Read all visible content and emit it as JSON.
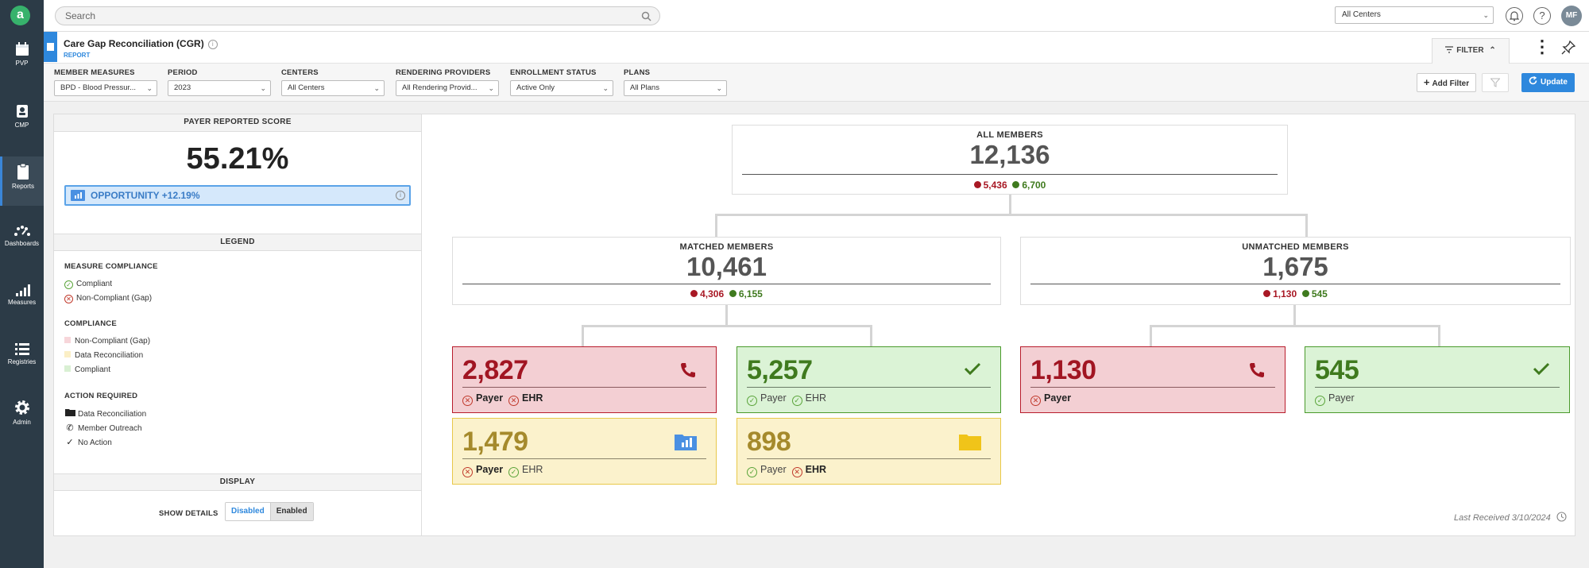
{
  "app": {
    "logo": "a"
  },
  "sidebar": {
    "items": [
      {
        "label": "PVP",
        "icon": "calendar-icon"
      },
      {
        "label": "CMP",
        "icon": "badge-icon"
      },
      {
        "label": "Reports",
        "icon": "clipboard-icon",
        "active": true
      },
      {
        "label": "Dashboards",
        "icon": "gauge-icon"
      },
      {
        "label": "Measures",
        "icon": "signal-bars-icon"
      },
      {
        "label": "Registries",
        "icon": "list-icon"
      },
      {
        "label": "Admin",
        "icon": "gear-icon"
      }
    ]
  },
  "topbar": {
    "search_placeholder": "Search",
    "center_select": "All Centers",
    "user_initials": "MF"
  },
  "report": {
    "title": "Care Gap Reconciliation (CGR)",
    "subtitle": "REPORT",
    "filter_tab": "FILTER"
  },
  "filters": [
    {
      "label": "MEMBER MEASURES",
      "value": "BPD - Blood Pressur..."
    },
    {
      "label": "PERIOD",
      "value": "2023"
    },
    {
      "label": "CENTERS",
      "value": "All Centers"
    },
    {
      "label": "RENDERING PROVIDERS",
      "value": "All Rendering Provid..."
    },
    {
      "label": "ENROLLMENT STATUS",
      "value": "Active Only"
    },
    {
      "label": "PLANS",
      "value": "All Plans"
    }
  ],
  "filter_actions": {
    "add_filter": "Add Filter",
    "update": "Update"
  },
  "left": {
    "payer_header": "PAYER REPORTED SCORE",
    "score": "55.21%",
    "opportunity": "OPPORTUNITY +12.19%",
    "legend_header": "LEGEND",
    "measure_compliance_title": "MEASURE COMPLIANCE",
    "measure_compliance": [
      "Compliant",
      "Non-Compliant (Gap)"
    ],
    "compliance_title": "COMPLIANCE",
    "compliance": [
      "Non-Compliant (Gap)",
      "Data Reconciliation",
      "Compliant"
    ],
    "compliance_colors": [
      "#f7d6da",
      "#fbefc6",
      "#d9f0d3"
    ],
    "action_title": "ACTION REQUIRED",
    "actions": [
      "Data Reconciliation",
      "Member Outreach",
      "No Action"
    ],
    "display_header": "DISPLAY",
    "show_details": "SHOW DETAILS",
    "toggle_off": "Disabled",
    "toggle_on": "Enabled"
  },
  "tree": {
    "all": {
      "title": "ALL MEMBERS",
      "value": "12,136",
      "red": "5,436",
      "green": "6,700"
    },
    "matched": {
      "title": "MATCHED MEMBERS",
      "value": "10,461",
      "red": "4,306",
      "green": "6,155"
    },
    "unmatched": {
      "title": "UNMATCHED MEMBERS",
      "value": "1,675",
      "red": "1,130",
      "green": "545"
    },
    "cards": [
      {
        "value": "2,827",
        "f1": "Payer",
        "f2": "EHR"
      },
      {
        "value": "5,257",
        "f1": "Payer",
        "f2": "EHR"
      },
      {
        "value": "1,479",
        "f1": "Payer",
        "f2": "EHR"
      },
      {
        "value": "898",
        "f1": "Payer",
        "f2": "EHR"
      },
      {
        "value": "1,130",
        "f1": "Payer"
      },
      {
        "value": "545",
        "f1": "Payer"
      }
    ]
  },
  "last_received": "Last Received 3/10/2024"
}
